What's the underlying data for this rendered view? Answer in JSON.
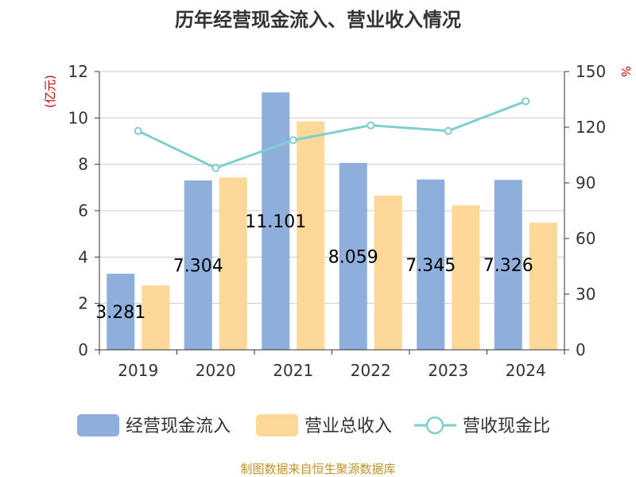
{
  "chart_data": {
    "type": "bar",
    "title": "历年经营现金流入、营业收入情况",
    "categories": [
      "2019",
      "2020",
      "2021",
      "2022",
      "2023",
      "2024"
    ],
    "left_unit": "(亿元)",
    "right_unit": "%",
    "ylim_left": [
      0,
      12
    ],
    "yticks_left": [
      0,
      2,
      4,
      6,
      8,
      10,
      12
    ],
    "ylim_right": [
      0,
      150
    ],
    "yticks_right": [
      0,
      30,
      60,
      90,
      120,
      150
    ],
    "grid": true,
    "legend_position": "bottom",
    "series": [
      {
        "name": "经营现金流入",
        "type": "bar",
        "axis": "left",
        "color": "#8eaedb",
        "values": [
          3.281,
          7.304,
          11.101,
          8.059,
          7.345,
          7.326
        ],
        "labels": [
          "3.281",
          "7.304",
          "11.101",
          "8.059",
          "7.345",
          "7.326"
        ]
      },
      {
        "name": "营业总收入",
        "type": "bar",
        "axis": "left",
        "color": "#fdd898",
        "values": [
          2.78,
          7.43,
          9.85,
          6.65,
          6.23,
          5.48
        ]
      },
      {
        "name": "营收现金比",
        "type": "line",
        "axis": "right",
        "color": "#7fcfcf",
        "values": [
          118,
          98,
          113,
          121,
          118,
          134
        ]
      }
    ],
    "source": "制图数据来自恒生聚源数据库"
  }
}
